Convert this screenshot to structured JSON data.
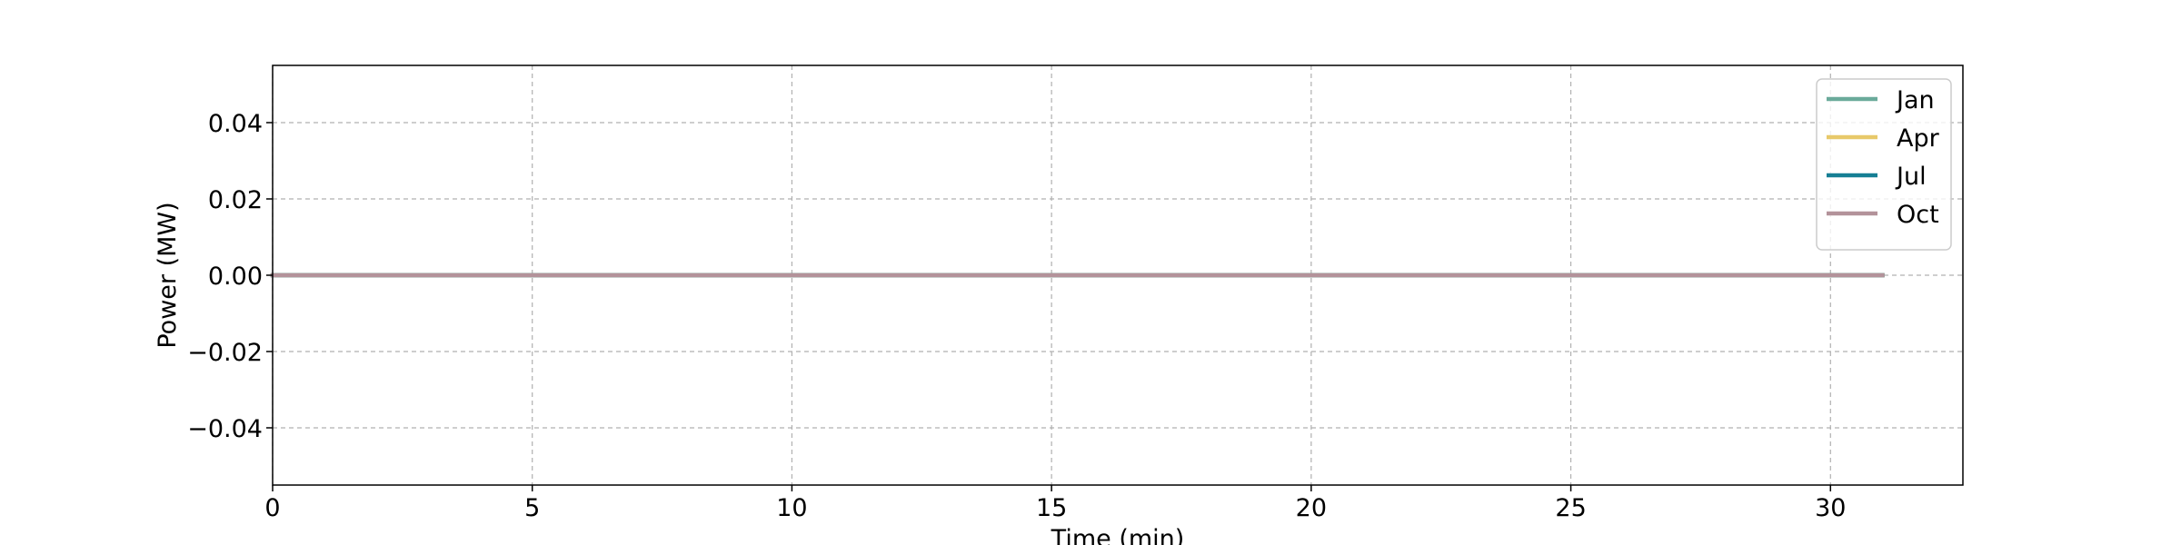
{
  "chart_data": {
    "type": "line",
    "title": "",
    "xlabel": "Time (min)",
    "ylabel": "Power (MW)",
    "xlim": [
      0,
      32.55
    ],
    "ylim": [
      -0.055,
      0.055
    ],
    "x_ticks": [
      0,
      5,
      10,
      15,
      20,
      25,
      30
    ],
    "x_tick_labels": [
      "0",
      "5",
      "10",
      "15",
      "20",
      "25",
      "30"
    ],
    "y_ticks": [
      0.04,
      0.02,
      0.0,
      -0.02,
      -0.04
    ],
    "y_tick_labels": [
      "0.04",
      "0.02",
      "0.00",
      "−0.02",
      "−0.04"
    ],
    "grid": true,
    "legend_position": "top-right",
    "x": [
      0,
      31
    ],
    "series": [
      {
        "name": "Jan",
        "color": "#6aaa9a",
        "values": [
          0,
          0
        ]
      },
      {
        "name": "Apr",
        "color": "#e8c96a",
        "values": [
          0,
          0
        ]
      },
      {
        "name": "Jul",
        "color": "#167f94",
        "values": [
          0,
          0
        ]
      },
      {
        "name": "Oct",
        "color": "#b3929a",
        "values": [
          0,
          0
        ]
      }
    ]
  }
}
